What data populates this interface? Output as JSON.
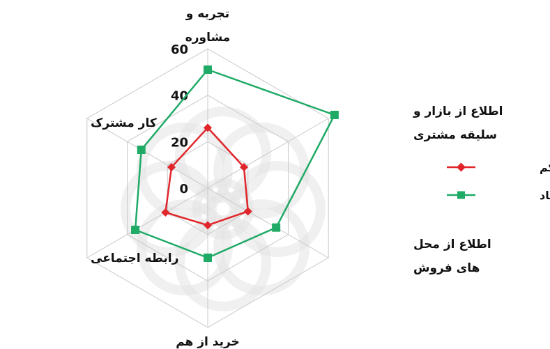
{
  "chart_data": {
    "type": "radar",
    "axes": [
      [
        "تجربه و",
        "مشاوره"
      ],
      [
        "اطلاع از بازار و",
        "سلیقه مشتری"
      ],
      [
        "اطلاع از محل",
        "های فروش"
      ],
      [
        "خرید از هم"
      ],
      [
        "رابطه اجتماعی"
      ],
      [
        "کار مشترک"
      ]
    ],
    "categories": [
      "تجربه و مشاوره",
      "اطلاع از بازار و سلیقه مشتری",
      "اطلاع از محل های فروش",
      "خرید از هم",
      "رابطه اجتماعی",
      "کار مشترک"
    ],
    "r_ticks": [
      "0",
      "20",
      "40",
      "60"
    ],
    "r_tick_values": [
      0,
      20,
      40,
      60
    ],
    "rlim": [
      0,
      60
    ],
    "grid": true,
    "legend_position": "right",
    "series": [
      {
        "name": "موفقیت کم",
        "values": [
          26,
          18,
          20,
          16,
          21,
          18
        ],
        "color": "#e0262a",
        "marker": "diamond"
      },
      {
        "name": "موفقیت زیاد",
        "values": [
          51,
          63,
          34,
          30,
          36,
          33
        ],
        "color": "#1faa66",
        "marker": "square"
      }
    ]
  },
  "colors": {
    "grid": "#c9c9c9",
    "watermark": "#e4e4e4"
  }
}
